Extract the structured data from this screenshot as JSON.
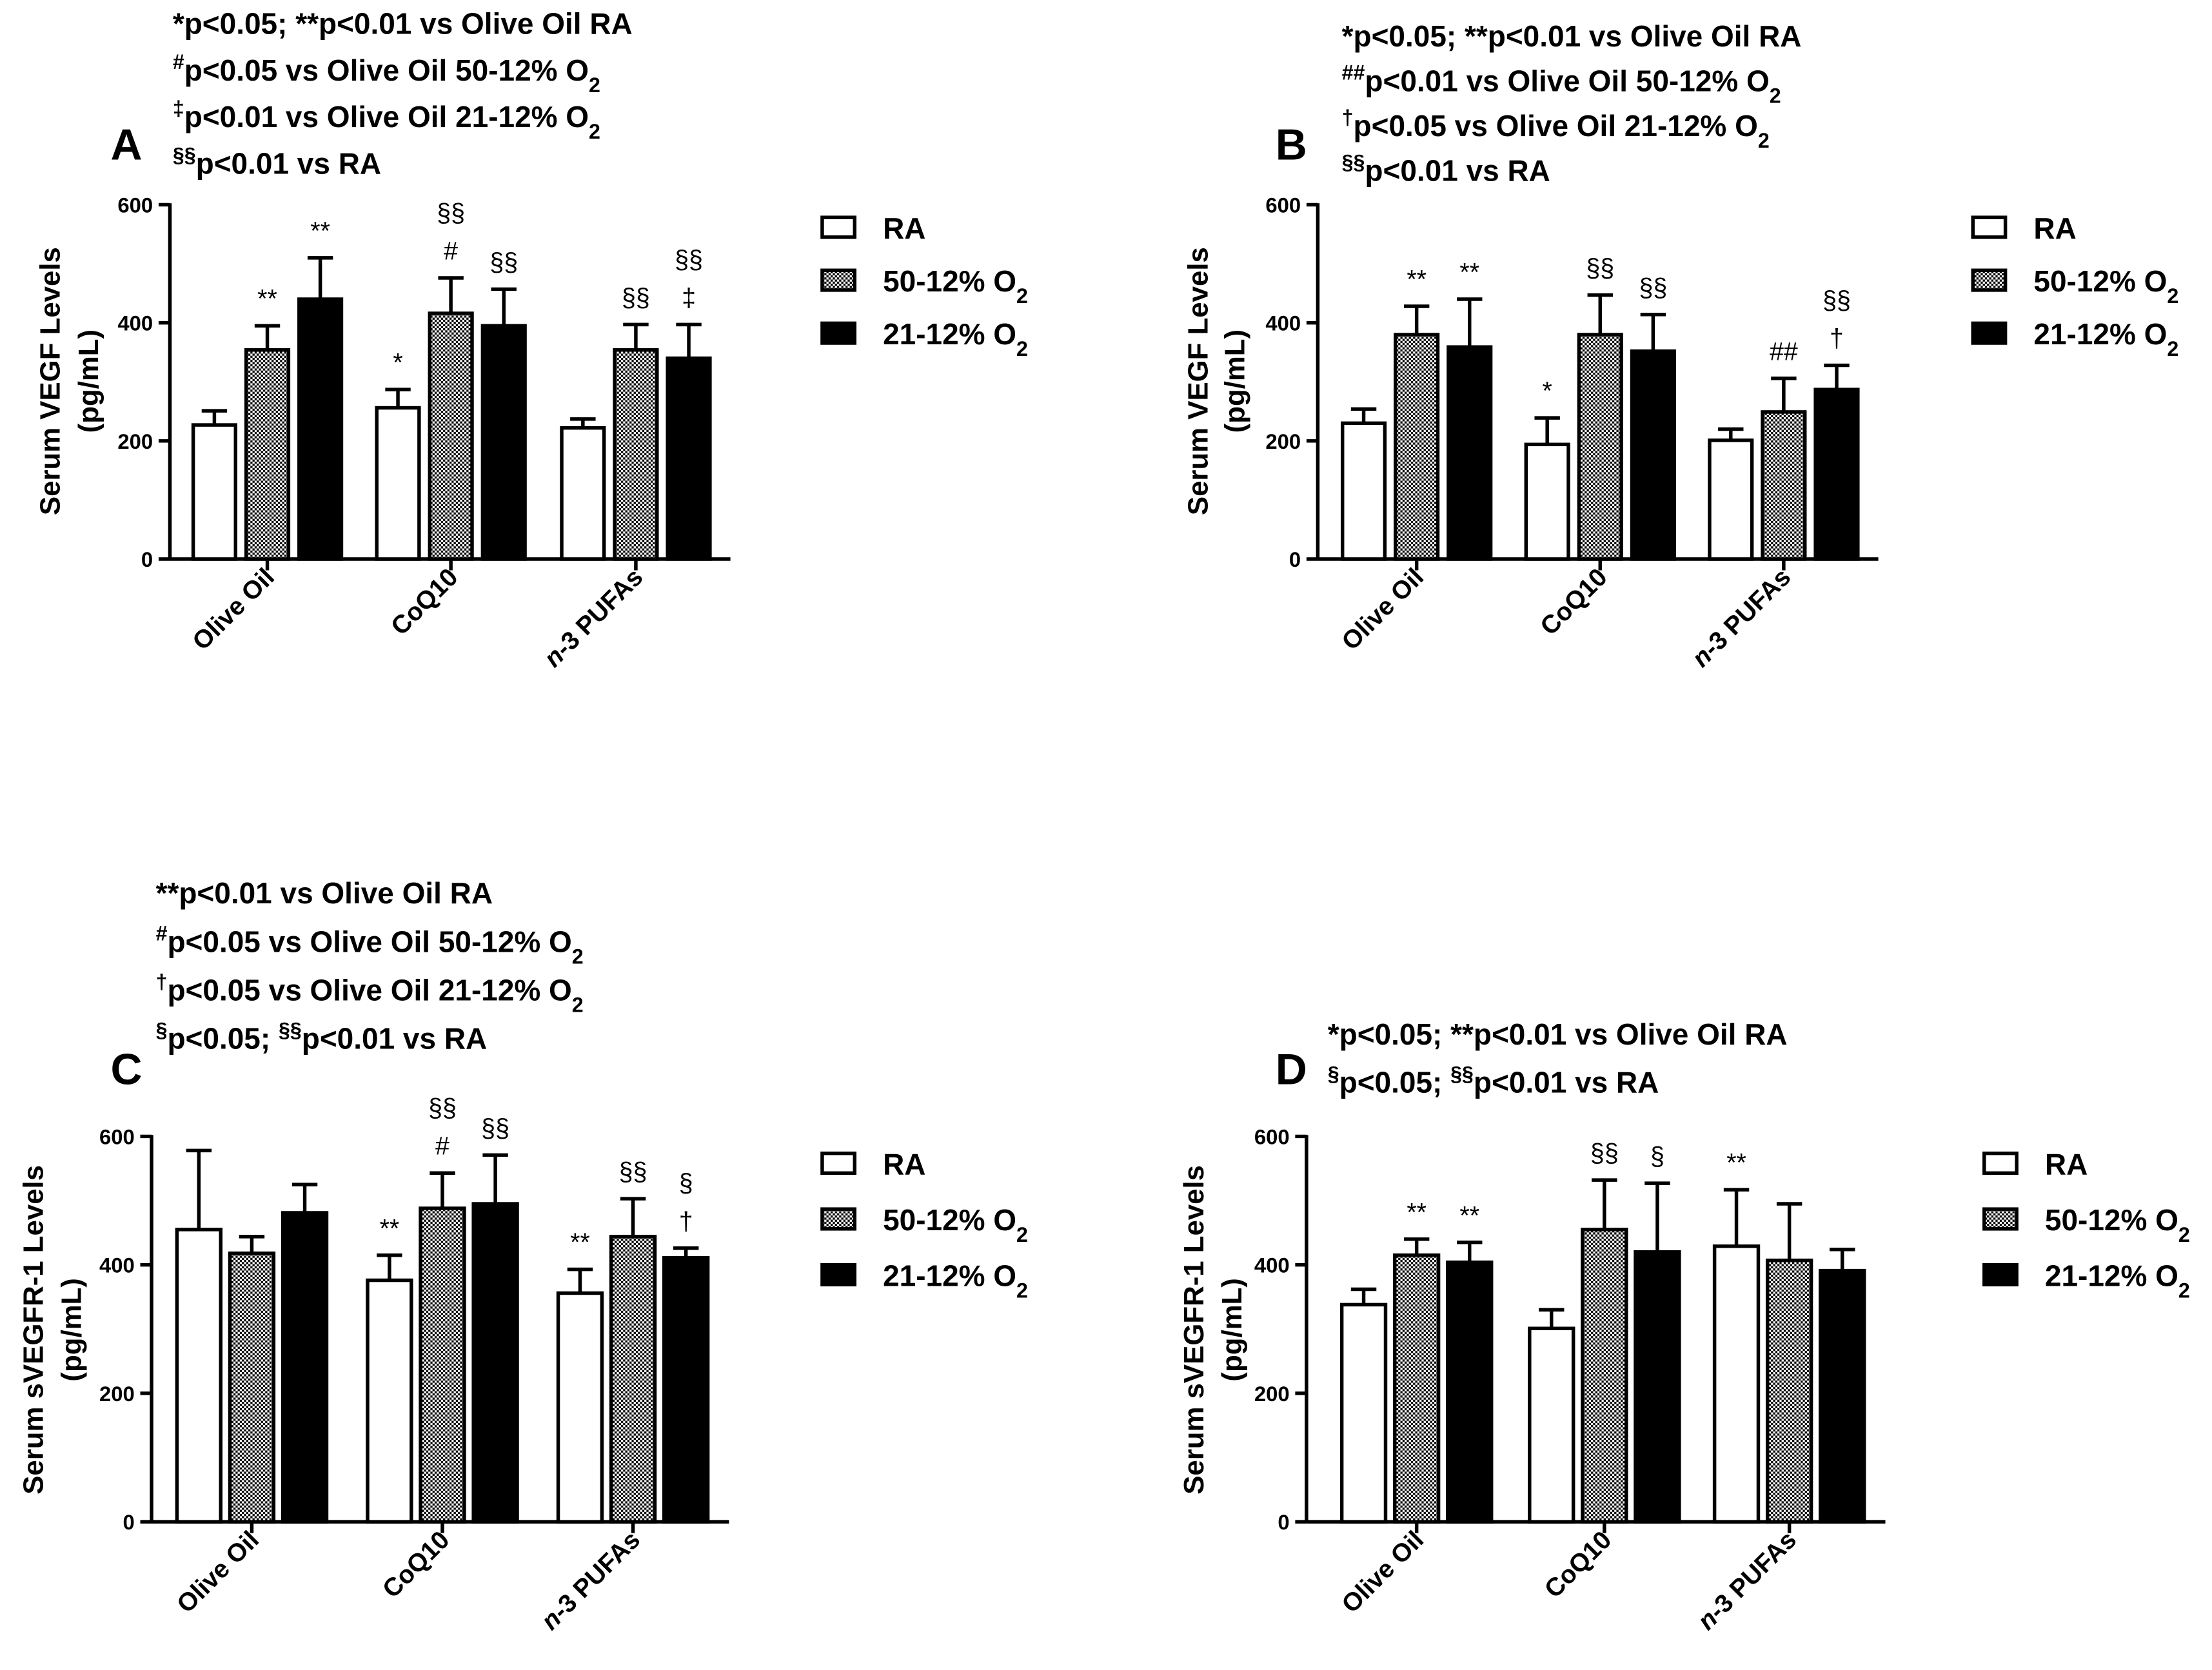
{
  "chart_data": [
    {
      "type": "bar",
      "panel_label": "A",
      "ylabel": [
        "Serum VEGF Levels",
        "(pg/mL)"
      ],
      "ylim": [
        0,
        600
      ],
      "yticks": [
        0,
        200,
        400,
        600
      ],
      "categories": [
        [
          {
            "t": "Olive Oil"
          }
        ],
        [
          {
            "t": "CoQ10"
          }
        ],
        [
          {
            "t": "n",
            "italic": true
          },
          {
            "t": "-3 PUFAs"
          }
        ]
      ],
      "series": [
        {
          "name": [
            {
              "t": "RA"
            }
          ],
          "fill": "#ffffff",
          "values": [
            227,
            256,
            222
          ],
          "errors": [
            24,
            31,
            15
          ],
          "marks": [
            [],
            [
              "*"
            ],
            []
          ]
        },
        {
          "name": [
            {
              "t": "50-12% O"
            },
            {
              "t": "2",
              "sub": true
            }
          ],
          "fill": "#ffffff",
          "stipple": "#000000",
          "values": [
            354,
            416,
            354
          ],
          "errors": [
            41,
            60,
            43
          ],
          "marks": [
            [
              "**"
            ],
            [
              "§§",
              "#"
            ],
            [
              "§§"
            ]
          ]
        },
        {
          "name": [
            {
              "t": "21-12% O"
            },
            {
              "t": "2",
              "sub": true
            }
          ],
          "fill": "#000000",
          "values": [
            440,
            395,
            340
          ],
          "errors": [
            70,
            62,
            57
          ],
          "marks": [
            [
              "**"
            ],
            [
              "§§"
            ],
            [
              "§§",
              "‡"
            ]
          ]
        }
      ],
      "notes": [
        [
          {
            "t": "*p<0.05; **p<0.01 vs Olive Oil RA"
          }
        ],
        [
          {
            "t": "#",
            "sup": true
          },
          {
            "t": "p<0.05 vs Olive Oil 50-12% O"
          },
          {
            "t": "2",
            "sub": true
          }
        ],
        [
          {
            "t": "‡",
            "sup": true
          },
          {
            "t": "p<0.01 vs Olive Oil 21-12% O"
          },
          {
            "t": "2",
            "sub": true
          }
        ],
        [
          {
            "t": "§§",
            "sup": true
          },
          {
            "t": "p<0.01 vs RA"
          }
        ]
      ]
    },
    {
      "type": "bar",
      "panel_label": "B",
      "ylabel": [
        "Serum VEGF Levels",
        "(pg/mL)"
      ],
      "ylim": [
        0,
        600
      ],
      "yticks": [
        0,
        200,
        400,
        600
      ],
      "categories": [
        [
          {
            "t": "Olive Oil"
          }
        ],
        [
          {
            "t": "CoQ10"
          }
        ],
        [
          {
            "t": "n",
            "italic": true
          },
          {
            "t": "-3 PUFAs"
          }
        ]
      ],
      "series": [
        {
          "name": [
            {
              "t": "RA"
            }
          ],
          "fill": "#ffffff",
          "values": [
            230,
            194,
            201
          ],
          "errors": [
            24,
            45,
            19
          ],
          "marks": [
            [],
            [
              "*"
            ],
            []
          ]
        },
        {
          "name": [
            {
              "t": "50-12% O"
            },
            {
              "t": "2",
              "sub": true
            }
          ],
          "fill": "#ffffff",
          "stipple": "#000000",
          "values": [
            380,
            380,
            249
          ],
          "errors": [
            48,
            67,
            57
          ],
          "marks": [
            [
              "**"
            ],
            [
              "§§"
            ],
            [
              "##"
            ]
          ]
        },
        {
          "name": [
            {
              "t": "21-12% O"
            },
            {
              "t": "2",
              "sub": true
            }
          ],
          "fill": "#000000",
          "values": [
            359,
            352,
            287
          ],
          "errors": [
            81,
            62,
            41
          ],
          "marks": [
            [
              "**"
            ],
            [
              "§§"
            ],
            [
              "§§",
              "†"
            ]
          ]
        }
      ],
      "notes": [
        [
          {
            "t": "*p<0.05; **p<0.01 vs Olive Oil RA"
          }
        ],
        [
          {
            "t": "##",
            "sup": true
          },
          {
            "t": "p<0.01 vs Olive Oil 50-12% O"
          },
          {
            "t": "2",
            "sub": true
          }
        ],
        [
          {
            "t": "†",
            "sup": true
          },
          {
            "t": "p<0.05 vs Olive Oil 21-12% O"
          },
          {
            "t": "2",
            "sub": true
          }
        ],
        [
          {
            "t": "§§",
            "sup": true
          },
          {
            "t": "p<0.01 vs RA"
          }
        ]
      ]
    },
    {
      "type": "bar",
      "panel_label": "C",
      "ylabel": [
        "Serum sVEGFR-1 Levels",
        "(pg/mL)"
      ],
      "ylim": [
        0,
        600
      ],
      "yticks": [
        0,
        200,
        400,
        600
      ],
      "categories": [
        [
          {
            "t": "Olive Oil"
          }
        ],
        [
          {
            "t": "CoQ10"
          }
        ],
        [
          {
            "t": "n",
            "italic": true
          },
          {
            "t": "-3 PUFAs"
          }
        ]
      ],
      "series": [
        {
          "name": [
            {
              "t": "RA"
            }
          ],
          "fill": "#ffffff",
          "values": [
            455,
            376,
            356
          ],
          "errors": [
            123,
            39,
            37
          ],
          "marks": [
            [],
            [
              "**"
            ],
            [
              "**"
            ]
          ]
        },
        {
          "name": [
            {
              "t": "50-12% O"
            },
            {
              "t": "2",
              "sub": true
            }
          ],
          "fill": "#ffffff",
          "stipple": "#000000",
          "values": [
            418,
            488,
            444
          ],
          "errors": [
            26,
            55,
            59
          ],
          "marks": [
            [],
            [
              "§§",
              "#"
            ],
            [
              "§§"
            ]
          ]
        },
        {
          "name": [
            {
              "t": "21-12% O"
            },
            {
              "t": "2",
              "sub": true
            }
          ],
          "fill": "#000000",
          "values": [
            481,
            495,
            411
          ],
          "errors": [
            44,
            76,
            15
          ],
          "marks": [
            [],
            [
              "§§"
            ],
            [
              "§",
              "†"
            ]
          ]
        }
      ],
      "notes": [
        [
          {
            "t": "**p<0.01 vs Olive Oil RA"
          }
        ],
        [
          {
            "t": "#",
            "sup": true
          },
          {
            "t": "p<0.05 vs Olive Oil 50-12% O"
          },
          {
            "t": "2",
            "sub": true
          }
        ],
        [
          {
            "t": "†",
            "sup": true
          },
          {
            "t": "p<0.05 vs Olive Oil 21-12% O"
          },
          {
            "t": "2",
            "sub": true
          }
        ],
        [
          {
            "t": "§",
            "sup": true
          },
          {
            "t": "p<0.05; "
          },
          {
            "t": "§§",
            "sup": true
          },
          {
            "t": "p<0.01 vs RA"
          }
        ]
      ]
    },
    {
      "type": "bar",
      "panel_label": "D",
      "ylabel": [
        "Serum sVEGFR-1 Levels",
        "(pg/mL)"
      ],
      "ylim": [
        0,
        600
      ],
      "yticks": [
        0,
        200,
        400,
        600
      ],
      "categories": [
        [
          {
            "t": "Olive Oil"
          }
        ],
        [
          {
            "t": "CoQ10"
          }
        ],
        [
          {
            "t": "n",
            "italic": true
          },
          {
            "t": "-3 PUFAs"
          }
        ]
      ],
      "series": [
        {
          "name": [
            {
              "t": "RA"
            }
          ],
          "fill": "#ffffff",
          "values": [
            338,
            301,
            429
          ],
          "errors": [
            24,
            29,
            88
          ],
          "marks": [
            [],
            [],
            [
              "**"
            ]
          ]
        },
        {
          "name": [
            {
              "t": "50-12% O"
            },
            {
              "t": "2",
              "sub": true
            }
          ],
          "fill": "#ffffff",
          "stipple": "#000000",
          "values": [
            415,
            455,
            407
          ],
          "errors": [
            25,
            77,
            88
          ],
          "marks": [
            [
              "**"
            ],
            [
              "§§"
            ],
            []
          ]
        },
        {
          "name": [
            {
              "t": "21-12% O"
            },
            {
              "t": "2",
              "sub": true
            }
          ],
          "fill": "#000000",
          "values": [
            404,
            420,
            391
          ],
          "errors": [
            31,
            107,
            33
          ],
          "marks": [
            [
              "**"
            ],
            [
              "§"
            ],
            []
          ]
        }
      ],
      "notes": [
        [
          {
            "t": "*p<0.05; **p<0.01 vs Olive Oil RA"
          }
        ],
        [
          {
            "t": "§",
            "sup": true
          },
          {
            "t": "p<0.05; "
          },
          {
            "t": "§§",
            "sup": true
          },
          {
            "t": "p<0.01 vs RA"
          }
        ]
      ]
    }
  ]
}
